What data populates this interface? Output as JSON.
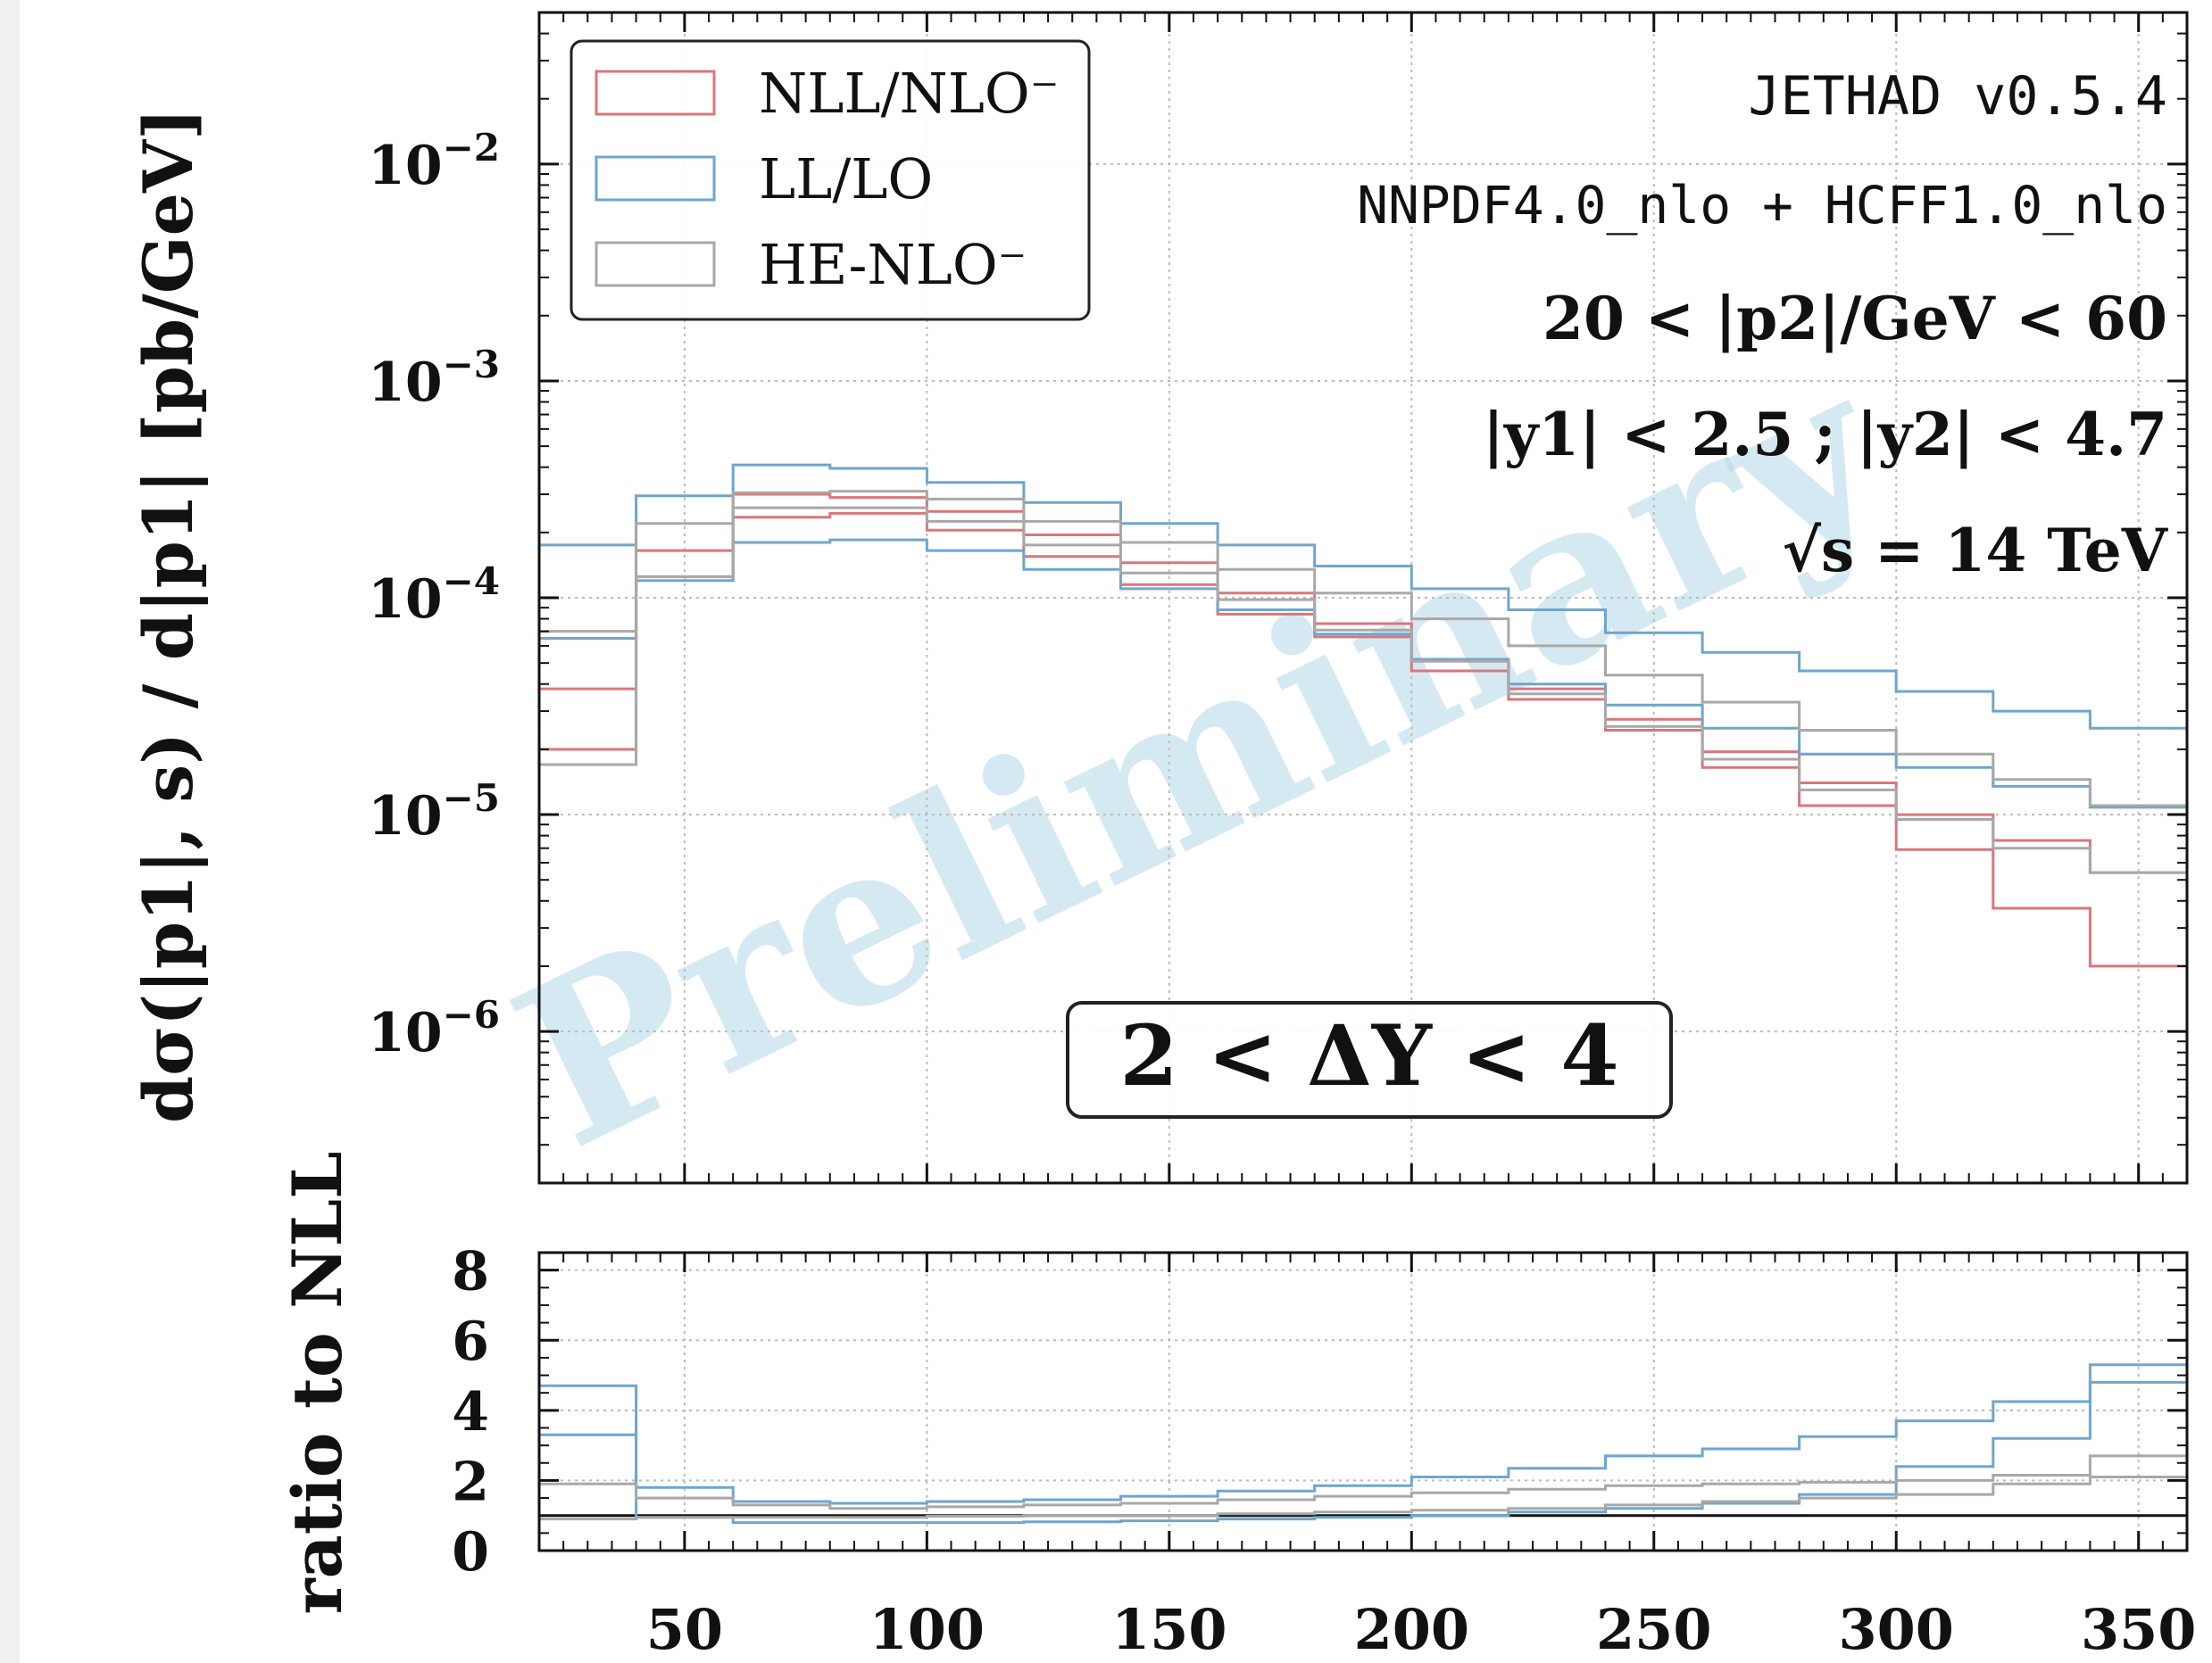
{
  "chart_data": [
    {
      "type": "line",
      "subtype": "step-histogram-bands",
      "yscale": "log",
      "xlim": [
        20,
        360
      ],
      "ylim": [
        2e-07,
        0.05
      ],
      "ylabel": "dσ(|p1|, s) / d|p1|  [pb/GeV]",
      "ytick_labels": [
        "10−6",
        "10−5",
        "10−4",
        "10−3",
        "10−2"
      ],
      "ytick_values": [
        1e-06,
        1e-05,
        0.0001,
        0.001,
        0.01
      ],
      "grid": true,
      "legend": {
        "placement": "top-left",
        "entries": [
          {
            "label": "NLL/NLO⁻",
            "color": "#d9777c"
          },
          {
            "label": "LL/LO",
            "color": "#6ea6cd"
          },
          {
            "label": "HE-NLO⁻",
            "color": "#a8a8a8"
          }
        ]
      },
      "annotations": [
        "JETHAD v0.5.4",
        "NNPDF4.0_nlo + HCFF1.0_nlo",
        "20 < |p2|/GeV < 60",
        "|y1| < 2.5 ;  |y2| < 4.7",
        "√s = 14 TeV",
        "2 < ΔY < 4"
      ],
      "watermark": "Preliminary",
      "bin_edges": [
        20,
        40,
        60,
        80,
        100,
        120,
        140,
        160,
        180,
        200,
        220,
        240,
        260,
        280,
        300,
        320,
        340,
        360
      ],
      "series": [
        {
          "name": "NLL/NLO⁻",
          "color": "#d9777c",
          "upper": [
            3.8e-05,
            0.000165,
            0.0003,
            0.00029,
            0.00025,
            0.000195,
            0.000145,
            0.000105,
            7.6e-05,
            5.1e-05,
            3.8e-05,
            2.75e-05,
            1.95e-05,
            1.4e-05,
            1e-05,
            7.6e-06,
            5.4e-06
          ],
          "lower": [
            2e-05,
            0.000125,
            0.000235,
            0.000245,
            0.000205,
            0.000155,
            0.000115,
            8.4e-05,
            6.6e-05,
            4.6e-05,
            3.4e-05,
            2.45e-05,
            1.65e-05,
            1.1e-05,
            6.9e-06,
            3.7e-06,
            2e-06
          ]
        },
        {
          "name": "LL/LO",
          "color": "#6ea6cd",
          "upper": [
            0.000175,
            0.000295,
            0.00041,
            0.000395,
            0.00034,
            0.000275,
            0.00022,
            0.000175,
            0.00014,
            0.00011,
            8.8e-05,
            6.9e-05,
            5.6e-05,
            4.6e-05,
            3.7e-05,
            3e-05,
            2.5e-05
          ],
          "lower": [
            6.5e-05,
            0.00012,
            0.00018,
            0.000185,
            0.000165,
            0.000135,
            0.00011,
            8.8e-05,
            6.8e-05,
            5.2e-05,
            4e-05,
            3.2e-05,
            2.5e-05,
            1.9e-05,
            1.65e-05,
            1.35e-05,
            1.08e-05
          ]
        },
        {
          "name": "HE-NLO⁻",
          "color": "#a8a8a8",
          "upper": [
            7e-05,
            0.00022,
            0.000305,
            0.00031,
            0.000285,
            0.000225,
            0.00018,
            0.000135,
            0.000105,
            8e-05,
            6e-05,
            4.4e-05,
            3.3e-05,
            2.45e-05,
            1.9e-05,
            1.45e-05,
            1.1e-05
          ],
          "lower": [
            1.7e-05,
            0.000125,
            0.00026,
            0.00026,
            0.000225,
            0.000175,
            0.00013,
            9.8e-05,
            7.1e-05,
            5.1e-05,
            3.6e-05,
            2.55e-05,
            1.8e-05,
            1.3e-05,
            9.5e-06,
            7e-06,
            5.4e-06
          ]
        }
      ]
    },
    {
      "type": "line",
      "subtype": "step-histogram-bands",
      "yscale": "linear",
      "xlim": [
        20,
        360
      ],
      "ylim": [
        0,
        8.5
      ],
      "ylabel": "ratio to NLL",
      "ytick_labels": [
        "0",
        "2",
        "4",
        "6",
        "8"
      ],
      "ytick_values": [
        0,
        2,
        4,
        6,
        8
      ],
      "xtick_labels": [
        "50",
        "100",
        "150",
        "200",
        "250",
        "300",
        "350"
      ],
      "xtick_values": [
        50,
        100,
        150,
        200,
        250,
        300,
        350
      ],
      "reference_line": 1,
      "grid": true,
      "bin_edges": [
        20,
        40,
        60,
        80,
        100,
        120,
        140,
        160,
        180,
        200,
        220,
        240,
        260,
        280,
        300,
        320,
        340,
        360
      ],
      "series": [
        {
          "name": "LL/LO",
          "color": "#6ea6cd",
          "upper": [
            4.7,
            1.8,
            1.4,
            1.35,
            1.4,
            1.45,
            1.55,
            1.7,
            1.85,
            2.1,
            2.35,
            2.7,
            2.9,
            3.25,
            3.7,
            4.25,
            5.3
          ],
          "lower": [
            3.3,
            0.95,
            0.8,
            0.8,
            0.8,
            0.82,
            0.85,
            0.9,
            0.95,
            1.0,
            1.1,
            1.2,
            1.35,
            1.6,
            2.4,
            3.2,
            4.8
          ]
        },
        {
          "name": "HE-NLO⁻",
          "color": "#a8a8a8",
          "upper": [
            1.9,
            1.5,
            1.3,
            1.2,
            1.25,
            1.3,
            1.35,
            1.45,
            1.55,
            1.65,
            1.75,
            1.85,
            1.9,
            1.95,
            2.0,
            2.15,
            2.7
          ],
          "lower": [
            0.9,
            0.95,
            0.95,
            0.95,
            0.98,
            1.0,
            1.0,
            1.05,
            1.1,
            1.15,
            1.2,
            1.3,
            1.4,
            1.5,
            1.6,
            1.9,
            2.1
          ]
        }
      ]
    }
  ]
}
